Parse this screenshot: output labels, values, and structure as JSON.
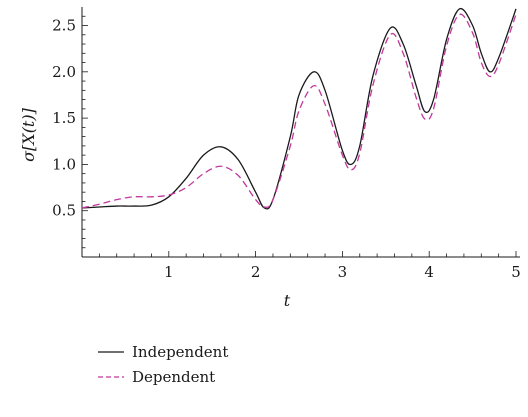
{
  "chart_data": {
    "type": "line",
    "title": "",
    "xlabel": "t",
    "ylabel": "σ[X(t)]",
    "xlim": [
      0,
      5
    ],
    "ylim": [
      0,
      2.7
    ],
    "x_ticks": [
      1,
      2,
      3,
      4,
      5
    ],
    "x_tick_labels": [
      "1",
      "2",
      "3",
      "4",
      "5"
    ],
    "y_ticks": [
      0.5,
      1.0,
      1.5,
      2.0,
      2.5
    ],
    "y_tick_labels": [
      "0.5",
      "1.0",
      "1.5",
      "2.0",
      "2.5"
    ],
    "grid": false,
    "legend_position": "bottom-left",
    "series": [
      {
        "name": "Independent",
        "color": "#1a1a1a",
        "dash": "solid",
        "x": [
          0,
          0.2,
          0.4,
          0.6,
          0.8,
          1.0,
          1.2,
          1.4,
          1.6,
          1.8,
          2.0,
          2.1,
          2.2,
          2.4,
          2.5,
          2.67,
          2.8,
          3.0,
          3.1,
          3.2,
          3.35,
          3.55,
          3.7,
          3.85,
          3.95,
          4.05,
          4.2,
          4.35,
          4.5,
          4.6,
          4.7,
          4.8,
          5.0
        ],
        "y": [
          0.53,
          0.54,
          0.55,
          0.55,
          0.56,
          0.65,
          0.85,
          1.1,
          1.19,
          1.05,
          0.7,
          0.53,
          0.62,
          1.3,
          1.75,
          2.0,
          1.8,
          1.15,
          1.0,
          1.2,
          1.95,
          2.47,
          2.3,
          1.85,
          1.57,
          1.7,
          2.35,
          2.68,
          2.5,
          2.2,
          2.0,
          2.15,
          2.68
        ]
      },
      {
        "name": "Dependent",
        "color": "#c0399c",
        "dash": "dashed",
        "x": [
          0,
          0.2,
          0.4,
          0.6,
          0.8,
          1.0,
          1.2,
          1.4,
          1.6,
          1.8,
          2.0,
          2.1,
          2.2,
          2.4,
          2.5,
          2.67,
          2.8,
          3.0,
          3.1,
          3.2,
          3.35,
          3.55,
          3.7,
          3.85,
          3.95,
          4.05,
          4.2,
          4.35,
          4.5,
          4.6,
          4.7,
          4.8,
          5.0
        ],
        "y": [
          0.53,
          0.57,
          0.62,
          0.65,
          0.65,
          0.67,
          0.75,
          0.9,
          0.98,
          0.88,
          0.62,
          0.54,
          0.62,
          1.2,
          1.58,
          1.85,
          1.65,
          1.1,
          0.94,
          1.12,
          1.85,
          2.4,
          2.2,
          1.72,
          1.49,
          1.6,
          2.28,
          2.62,
          2.42,
          2.1,
          1.95,
          2.08,
          2.62
        ]
      }
    ]
  }
}
